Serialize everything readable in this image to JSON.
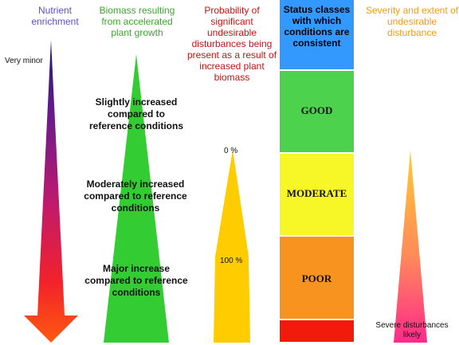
{
  "headers": {
    "nutrient": "Nutrient enrichment",
    "biomass": "Biomass resulting from accelerated plant growth",
    "probability": "Probability of significant undesirable disturbances being present as a result of increased plant biomass",
    "status": "Status classes with which conditions are consistent",
    "severity": "Severity and extent of undesirable disturbance"
  },
  "labels": {
    "very_minor": "Very minor",
    "slightly": "Slightly increased compared to reference conditions",
    "moderately": "Moderately  increased compared to reference conditions",
    "major": "Major increase compared to reference conditions",
    "zero_pct": "0 %",
    "hundred_pct": "100 %",
    "severe": "Severe disturbances likely"
  },
  "status_classes": {
    "good": "GOOD",
    "moderate": "MODERATE",
    "poor": "POOR"
  },
  "colors": {
    "status_header": "#3399ff",
    "good": "#4cd24c",
    "moderate": "#f7f727",
    "poor": "#f7931e",
    "bad": "#f21a0a",
    "biomass": "#33cc33",
    "probability": "#ffcc00"
  }
}
